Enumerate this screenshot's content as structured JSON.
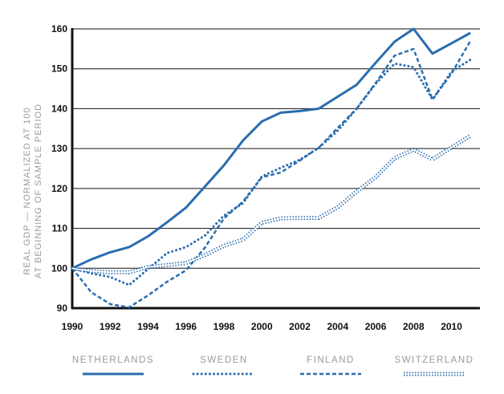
{
  "chart_data": {
    "type": "line",
    "title": "",
    "ylabel_lines": [
      "REAL GDP — NORMALIZED AT 100",
      "AT BEGINNING OF SAMPLE PERIOD"
    ],
    "xlabel": "",
    "x": [
      1990,
      1991,
      1992,
      1993,
      1994,
      1995,
      1996,
      1997,
      1998,
      1999,
      2000,
      2001,
      2002,
      2003,
      2004,
      2005,
      2006,
      2007,
      2008,
      2009,
      2010,
      2011
    ],
    "xlim": [
      1990,
      2011.5
    ],
    "ylim": [
      90,
      160
    ],
    "x_ticks": [
      "1990",
      "1992",
      "1994",
      "1996",
      "1998",
      "2000",
      "2002",
      "2004",
      "2006",
      "2008",
      "2010"
    ],
    "y_ticks": [
      "90",
      "100",
      "110",
      "120",
      "130",
      "140",
      "150",
      "160"
    ],
    "grid": "horizontal",
    "legend_position": "bottom",
    "colors": {
      "line": "#2a6db0",
      "grid": "#111111",
      "muted_text": "#9a9a9a"
    },
    "series": [
      {
        "name": "NETHERLANDS",
        "style": "solid",
        "values": [
          100,
          102.2,
          104,
          105.3,
          108,
          111.5,
          115.2,
          120.5,
          125.8,
          132,
          136.8,
          139,
          139.4,
          140,
          143,
          146,
          151.5,
          156.8,
          160,
          153.8,
          156.4,
          159
        ]
      },
      {
        "name": "SWEDEN",
        "style": "dotted",
        "values": [
          100,
          98.7,
          97.8,
          95.8,
          99.8,
          103.8,
          105.3,
          108.2,
          113.2,
          116.3,
          123,
          125.2,
          127.2,
          130.2,
          134.5,
          140,
          146.2,
          151.3,
          150.4,
          142.3,
          149.3,
          152.3
        ]
      },
      {
        "name": "FINLAND",
        "style": "dashed",
        "values": [
          100,
          94,
          91,
          90.2,
          93.2,
          96.6,
          99.5,
          105.2,
          112.5,
          116.7,
          122.8,
          124,
          127,
          130.2,
          135.2,
          140,
          146.4,
          153.3,
          155,
          142.3,
          148.8,
          157
        ]
      },
      {
        "name": "SWITZERLAND",
        "style": "hatched",
        "values": [
          100,
          99.3,
          99,
          99,
          100.3,
          100.8,
          101.3,
          103.3,
          105.6,
          107.2,
          111.4,
          112.5,
          112.6,
          112.6,
          115.3,
          119.2,
          122.8,
          127.6,
          129.7,
          127.3,
          130.3,
          133.2
        ]
      }
    ]
  }
}
